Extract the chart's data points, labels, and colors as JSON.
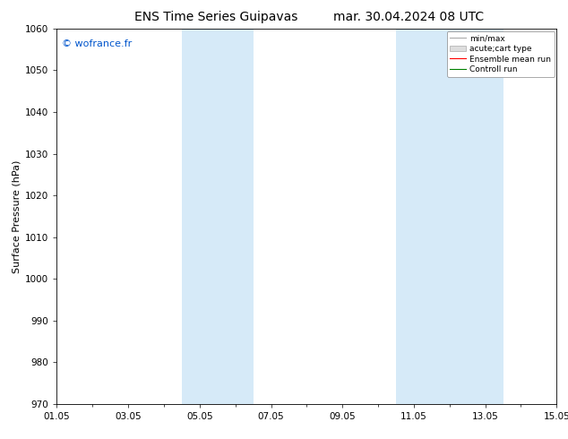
{
  "title_left": "ENS Time Series Guipavas",
  "title_right": "mar. 30.04.2024 08 UTC",
  "ylabel": "Surface Pressure (hPa)",
  "ylim": [
    970,
    1060
  ],
  "yticks": [
    970,
    980,
    990,
    1000,
    1010,
    1020,
    1030,
    1040,
    1050,
    1060
  ],
  "xlim": [
    0,
    14
  ],
  "xtick_labels": [
    "01.05",
    "03.05",
    "05.05",
    "07.05",
    "09.05",
    "11.05",
    "13.05",
    "15.05"
  ],
  "xtick_positions": [
    0,
    2,
    4,
    6,
    8,
    10,
    12,
    14
  ],
  "shaded_bands": [
    {
      "start": 3.5,
      "end": 5.5
    },
    {
      "start": 9.5,
      "end": 12.5
    }
  ],
  "shaded_color": "#d6eaf8",
  "watermark": "© wofrance.fr",
  "watermark_color": "#0055cc",
  "bg_color": "#ffffff",
  "plot_bg_color": "#ffffff",
  "title_fontsize": 10,
  "label_fontsize": 8,
  "tick_fontsize": 7.5
}
